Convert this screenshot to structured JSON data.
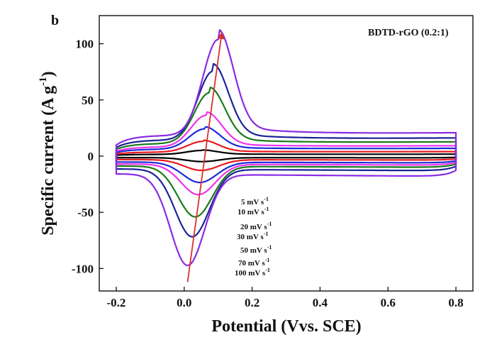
{
  "chart_data": {
    "type": "line",
    "panel_label": "b",
    "sample_label": "BDTD-rGO (0.2:1)",
    "xlabel": "Potential (Vvs. SCE)",
    "ylabel_main": "Specific current (A g",
    "ylabel_sup": "-1",
    "ylabel_close": ")",
    "xlim": [
      -0.25,
      0.85
    ],
    "ylim": [
      -120,
      125
    ],
    "xticks": [
      -0.2,
      0.0,
      0.2,
      0.4,
      0.6,
      0.8
    ],
    "yticks": [
      -100,
      -50,
      0,
      50,
      100
    ],
    "xtick_labels": [
      "-0.2",
      "0.0",
      "0.2",
      "0.4",
      "0.6",
      "0.8"
    ],
    "ytick_labels": [
      "-100",
      "-50",
      "0",
      "50",
      "100"
    ],
    "series": [
      {
        "name": "5 mV s-1",
        "rate": 5,
        "color": "#000000",
        "anodic_peak": 5,
        "cathodic_peak": -5,
        "baseline_upper": 1.5,
        "baseline_lower": -1.5
      },
      {
        "name": "10 mV s-1",
        "rate": 10,
        "color": "#e8191f",
        "anodic_peak": 13,
        "cathodic_peak": -13,
        "baseline_upper": 3.5,
        "baseline_lower": -3.5
      },
      {
        "name": "20 mV s-1",
        "rate": 20,
        "color": "#1c2bd6",
        "anodic_peak": 24,
        "cathodic_peak": -24,
        "baseline_upper": 6,
        "baseline_lower": -6
      },
      {
        "name": "30 mV s-1",
        "rate": 30,
        "color": "#ee33ee",
        "anodic_peak": 36,
        "cathodic_peak": -35,
        "baseline_upper": 8,
        "baseline_lower": -8
      },
      {
        "name": "50 mV s-1",
        "rate": 50,
        "color": "#1a7a1a",
        "anodic_peak": 56,
        "cathodic_peak": -55,
        "baseline_upper": 11,
        "baseline_lower": -10
      },
      {
        "name": "70 mV s-1",
        "rate": 70,
        "color": "#1a2496",
        "anodic_peak": 75,
        "cathodic_peak": -73,
        "baseline_upper": 14,
        "baseline_lower": -13
      },
      {
        "name": "100 mV s-1",
        "rate": 100,
        "color": "#8a2be2",
        "anodic_peak": 103,
        "cathodic_peak": -99,
        "baseline_upper": 18,
        "baseline_lower": -18
      }
    ],
    "legend_labels": [
      {
        "text": "5 mV s",
        "sup": "-1"
      },
      {
        "text": "10 mV s",
        "sup": "-1"
      },
      {
        "text": "20 mV s",
        "sup": "-1"
      },
      {
        "text": "30 mV s",
        "sup": "-1"
      },
      {
        "text": "50 mV s",
        "sup": "-1"
      },
      {
        "text": "70 mV s",
        "sup": "-1"
      },
      {
        "text": "100 mV s",
        "sup": "-1"
      }
    ],
    "arrow": {
      "from": [
        0.01,
        -112
      ],
      "to": [
        0.11,
        108
      ],
      "color": "#d9302c"
    },
    "grid": false,
    "legend_placement": "center-bottom (inline labels)"
  }
}
